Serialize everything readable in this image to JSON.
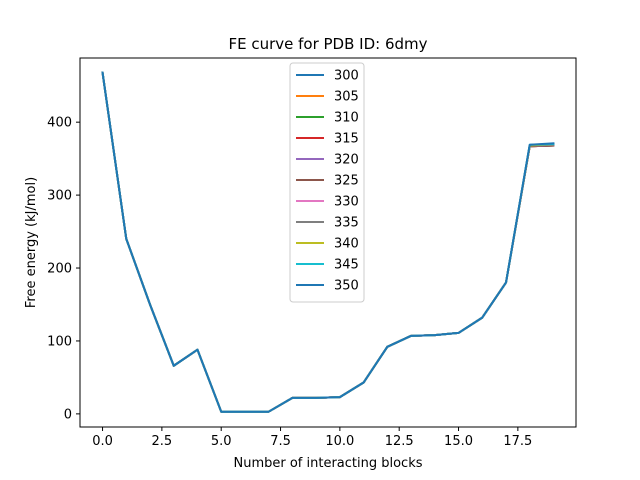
{
  "chart_data": {
    "type": "line",
    "title": "FE curve for PDB ID: 6dmy",
    "xlabel": "Number of interacting blocks",
    "ylabel": "Free energy (kJ/mol)",
    "xlim": [
      -0.95,
      19.95
    ],
    "ylim": [
      -18,
      488
    ],
    "xticks": [
      0.0,
      2.5,
      5.0,
      7.5,
      10.0,
      12.5,
      15.0,
      17.5
    ],
    "xtick_labels": [
      "0.0",
      "2.5",
      "5.0",
      "7.5",
      "10.0",
      "12.5",
      "15.0",
      "17.5"
    ],
    "yticks": [
      0,
      100,
      200,
      300,
      400
    ],
    "ytick_labels": [
      "0",
      "100",
      "200",
      "300",
      "400"
    ],
    "grid": false,
    "legend_position": "upper center",
    "x": [
      0,
      1,
      2,
      3,
      4,
      5,
      6,
      7,
      8,
      9,
      10,
      11,
      12,
      13,
      14,
      15,
      16,
      17,
      18,
      19
    ],
    "series": [
      {
        "name": "300",
        "color": "#1f77b4",
        "values": [
          468,
          240,
          150,
          66,
          88,
          3,
          3,
          3,
          22,
          22,
          23,
          43,
          92,
          107,
          108,
          111,
          132,
          180,
          368,
          370
        ]
      },
      {
        "name": "305",
        "color": "#ff7f0e",
        "values": [
          468,
          240,
          150,
          66,
          88,
          3,
          3,
          3,
          22,
          22,
          23,
          43,
          92,
          107,
          108,
          111,
          132,
          180,
          367,
          368
        ]
      },
      {
        "name": "310",
        "color": "#2ca02c",
        "values": [
          468,
          240,
          150,
          66,
          88,
          3,
          3,
          3,
          22,
          22,
          23,
          43,
          92,
          107,
          108,
          111,
          132,
          180,
          367,
          368
        ]
      },
      {
        "name": "315",
        "color": "#d62728",
        "values": [
          468,
          240,
          150,
          66,
          88,
          3,
          3,
          3,
          22,
          22,
          23,
          43,
          92,
          107,
          108,
          111,
          132,
          180,
          367,
          368
        ]
      },
      {
        "name": "320",
        "color": "#9467bd",
        "values": [
          468,
          240,
          150,
          66,
          88,
          3,
          3,
          3,
          22,
          22,
          23,
          43,
          92,
          107,
          108,
          111,
          132,
          180,
          367,
          368
        ]
      },
      {
        "name": "325",
        "color": "#8c564b",
        "values": [
          468,
          240,
          150,
          66,
          88,
          3,
          3,
          3,
          22,
          22,
          23,
          43,
          92,
          107,
          108,
          111,
          132,
          180,
          367,
          368
        ]
      },
      {
        "name": "330",
        "color": "#e377c2",
        "values": [
          468,
          240,
          150,
          66,
          88,
          3,
          3,
          3,
          22,
          22,
          23,
          43,
          92,
          107,
          108,
          111,
          132,
          180,
          368,
          369
        ]
      },
      {
        "name": "335",
        "color": "#7f7f7f",
        "values": [
          468,
          240,
          150,
          66,
          88,
          3,
          3,
          3,
          22,
          22,
          23,
          43,
          92,
          107,
          108,
          111,
          132,
          180,
          368,
          369
        ]
      },
      {
        "name": "340",
        "color": "#bcbd22",
        "values": [
          468,
          240,
          150,
          66,
          88,
          3,
          3,
          3,
          22,
          22,
          23,
          43,
          92,
          107,
          108,
          111,
          132,
          180,
          368,
          370
        ]
      },
      {
        "name": "345",
        "color": "#17becf",
        "values": [
          468,
          240,
          150,
          66,
          88,
          3,
          3,
          3,
          22,
          22,
          23,
          43,
          92,
          107,
          108,
          111,
          132,
          180,
          369,
          370
        ]
      },
      {
        "name": "350",
        "color": "#1f77b4",
        "values": [
          468,
          240,
          150,
          66,
          88,
          3,
          3,
          3,
          22,
          22,
          23,
          43,
          92,
          107,
          108,
          111,
          132,
          180,
          369,
          371
        ]
      }
    ]
  }
}
